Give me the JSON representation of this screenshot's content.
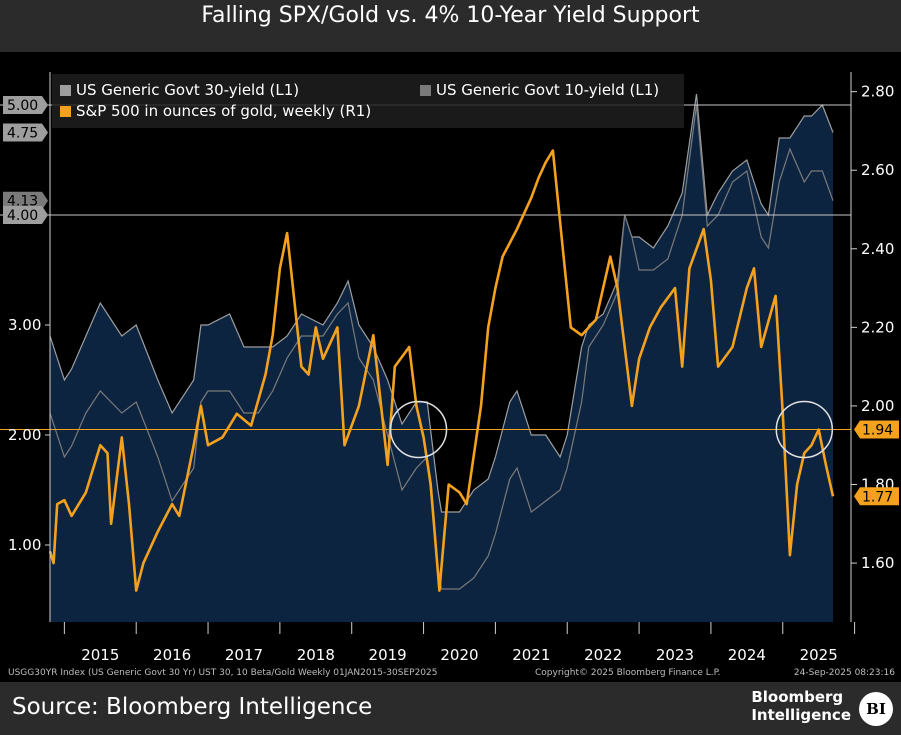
{
  "page": {
    "title": "Falling SPX/Gold vs. 4% 10-Year Yield Support",
    "source": "Source: Bloomberg Intelligence",
    "logo_line1": "Bloomberg",
    "logo_line2": "Intelligence",
    "logo_badge": "BI",
    "footer_left": "USGG30YR Index (US Generic Govt 30 Yr) UST 30, 10 Beta/Gold  Weekly 01JAN2015-30SEP2025",
    "footer_mid": "Copyright© 2025 Bloomberg Finance L.P.",
    "footer_right": "24-Sep-2025 08:23:16"
  },
  "colors": {
    "y30_fill": "#0d2440",
    "y30_line": "#9e9e9e",
    "y10_line": "#7a7a7a",
    "spx_gold": "#f4a11d",
    "background": "#000000"
  },
  "chart_data": {
    "type": "line",
    "title": "Falling SPX/Gold vs. 4% 10-Year Yield Support",
    "x_range": [
      2014.8,
      2025.95
    ],
    "x_ticks": [
      "2015",
      "2016",
      "2017",
      "2018",
      "2019",
      "2020",
      "2021",
      "2022",
      "2023",
      "2024",
      "2025"
    ],
    "left_axis": {
      "range": [
        0.3,
        5.3
      ],
      "ticks": [
        "1.00",
        "2.00",
        "3.00"
      ]
    },
    "right_axis": {
      "range": [
        1.45,
        2.85
      ],
      "ticks": [
        "1.60",
        "1.80",
        "2.00",
        "2.20",
        "2.40",
        "2.60",
        "2.80"
      ]
    },
    "legend": [
      "US Generic Govt 30-yield (L1)",
      "US Generic Govt 10-yield (L1)",
      "S&P 500 in ounces of gold, weekly (R1)"
    ],
    "hlines": [
      {
        "axis": "left",
        "value": 5.0,
        "label": "5.00",
        "label_color": "#ffffff",
        "label_bg": "#9e9e9e"
      },
      {
        "axis": "left",
        "value": 4.0,
        "label": "4.00",
        "label_color": "#ffffff",
        "label_bg": "#9e9e9e"
      },
      {
        "axis": "right",
        "value": 1.94,
        "label": "1.94",
        "label_color": "#000000",
        "label_bg": "#f4a11d"
      }
    ],
    "last_value_tags": [
      {
        "axis": "left",
        "value": 4.75,
        "label": "4.75",
        "label_bg": "#9e9e9e"
      },
      {
        "axis": "left",
        "value": 4.13,
        "label": "4.13",
        "label_bg": "#7a7a7a"
      },
      {
        "axis": "right",
        "value": 1.77,
        "label": "1.77",
        "label_bg": "#f4a11d"
      }
    ],
    "circles": [
      {
        "x": 2019.93,
        "axis": "right",
        "value": 1.94
      },
      {
        "x": 2025.3,
        "axis": "right",
        "value": 1.94
      }
    ],
    "series": [
      {
        "name": "US Generic Govt 30-yield",
        "axis": "left",
        "x": [
          2014.8,
          2015.0,
          2015.1,
          2015.3,
          2015.5,
          2015.8,
          2016.0,
          2016.3,
          2016.5,
          2016.8,
          2016.9,
          2017.0,
          2017.3,
          2017.5,
          2017.7,
          2017.9,
          2018.1,
          2018.3,
          2018.6,
          2018.8,
          2018.95,
          2019.1,
          2019.3,
          2019.5,
          2019.7,
          2019.9,
          2020.05,
          2020.2,
          2020.25,
          2020.5,
          2020.7,
          2020.9,
          2021.0,
          2021.2,
          2021.3,
          2021.5,
          2021.7,
          2021.9,
          2022.0,
          2022.2,
          2022.3,
          2022.5,
          2022.7,
          2022.8,
          2022.9,
          2023.0,
          2023.2,
          2023.4,
          2023.6,
          2023.8,
          2023.95,
          2024.1,
          2024.3,
          2024.5,
          2024.7,
          2024.8,
          2024.95,
          2025.1,
          2025.3,
          2025.4,
          2025.55,
          2025.7
        ],
        "values": [
          2.9,
          2.5,
          2.6,
          2.9,
          3.2,
          2.9,
          3.0,
          2.5,
          2.2,
          2.5,
          3.0,
          3.0,
          3.1,
          2.8,
          2.8,
          2.8,
          2.9,
          3.1,
          3.0,
          3.2,
          3.4,
          3.0,
          2.8,
          2.5,
          2.1,
          2.3,
          2.3,
          1.5,
          1.3,
          1.3,
          1.5,
          1.6,
          1.8,
          2.3,
          2.4,
          2.0,
          2.0,
          1.8,
          2.0,
          2.8,
          3.0,
          3.1,
          3.4,
          4.0,
          3.8,
          3.8,
          3.7,
          3.9,
          4.2,
          5.1,
          4.0,
          4.2,
          4.4,
          4.5,
          4.1,
          4.0,
          4.7,
          4.7,
          4.9,
          4.9,
          5.0,
          4.75
        ]
      },
      {
        "name": "US Generic Govt 10-yield",
        "axis": "left",
        "x": [
          2014.8,
          2015.0,
          2015.1,
          2015.3,
          2015.5,
          2015.8,
          2016.0,
          2016.3,
          2016.5,
          2016.8,
          2016.9,
          2017.0,
          2017.3,
          2017.5,
          2017.7,
          2017.9,
          2018.1,
          2018.3,
          2018.6,
          2018.8,
          2018.95,
          2019.1,
          2019.3,
          2019.5,
          2019.7,
          2019.9,
          2020.05,
          2020.2,
          2020.25,
          2020.5,
          2020.7,
          2020.9,
          2021.0,
          2021.2,
          2021.3,
          2021.5,
          2021.7,
          2021.9,
          2022.0,
          2022.2,
          2022.3,
          2022.5,
          2022.7,
          2022.8,
          2022.9,
          2023.0,
          2023.2,
          2023.4,
          2023.6,
          2023.8,
          2023.95,
          2024.1,
          2024.3,
          2024.5,
          2024.7,
          2024.8,
          2024.95,
          2025.1,
          2025.3,
          2025.4,
          2025.55,
          2025.7
        ],
        "values": [
          2.2,
          1.8,
          1.9,
          2.2,
          2.4,
          2.2,
          2.3,
          1.8,
          1.4,
          1.7,
          2.3,
          2.4,
          2.4,
          2.2,
          2.2,
          2.4,
          2.7,
          2.9,
          2.9,
          3.1,
          3.2,
          2.7,
          2.5,
          2.0,
          1.5,
          1.7,
          1.8,
          0.8,
          0.6,
          0.6,
          0.7,
          0.9,
          1.1,
          1.6,
          1.7,
          1.3,
          1.4,
          1.5,
          1.7,
          2.3,
          2.8,
          3.0,
          3.3,
          4.0,
          3.8,
          3.5,
          3.5,
          3.6,
          4.0,
          5.0,
          3.9,
          4.0,
          4.3,
          4.4,
          3.8,
          3.7,
          4.3,
          4.6,
          4.3,
          4.4,
          4.4,
          4.13
        ]
      },
      {
        "name": "S&P 500 in ounces of gold, weekly",
        "axis": "right",
        "x": [
          2014.8,
          2014.85,
          2014.9,
          2015.0,
          2015.1,
          2015.3,
          2015.5,
          2015.6,
          2015.65,
          2015.8,
          2015.9,
          2016.0,
          2016.1,
          2016.3,
          2016.5,
          2016.6,
          2016.8,
          2016.9,
          2017.0,
          2017.2,
          2017.4,
          2017.6,
          2017.8,
          2017.9,
          2018.0,
          2018.1,
          2018.3,
          2018.4,
          2018.5,
          2018.6,
          2018.8,
          2018.9,
          2019.0,
          2019.1,
          2019.3,
          2019.5,
          2019.6,
          2019.8,
          2019.9,
          2020.0,
          2020.1,
          2020.18,
          2020.22,
          2020.35,
          2020.5,
          2020.6,
          2020.8,
          2020.9,
          2021.0,
          2021.1,
          2021.3,
          2021.5,
          2021.6,
          2021.7,
          2021.8,
          2021.95,
          2022.05,
          2022.2,
          2022.4,
          2022.6,
          2022.7,
          2022.9,
          2023.0,
          2023.15,
          2023.3,
          2023.5,
          2023.6,
          2023.7,
          2023.9,
          2024.0,
          2024.1,
          2024.3,
          2024.5,
          2024.6,
          2024.7,
          2024.9,
          2025.0,
          2025.1,
          2025.2,
          2025.3,
          2025.4,
          2025.5,
          2025.6,
          2025.7
        ],
        "values": [
          1.63,
          1.6,
          1.75,
          1.76,
          1.72,
          1.78,
          1.9,
          1.88,
          1.7,
          1.92,
          1.75,
          1.53,
          1.6,
          1.68,
          1.75,
          1.72,
          1.9,
          2.0,
          1.9,
          1.92,
          1.98,
          1.95,
          2.08,
          2.18,
          2.35,
          2.44,
          2.1,
          2.08,
          2.2,
          2.12,
          2.2,
          1.9,
          1.95,
          2.0,
          2.18,
          1.85,
          2.1,
          2.15,
          2.0,
          1.92,
          1.8,
          1.62,
          1.53,
          1.8,
          1.78,
          1.75,
          2.0,
          2.2,
          2.3,
          2.38,
          2.45,
          2.53,
          2.58,
          2.62,
          2.65,
          2.38,
          2.2,
          2.18,
          2.22,
          2.38,
          2.3,
          2.0,
          2.12,
          2.2,
          2.25,
          2.3,
          2.1,
          2.35,
          2.45,
          2.32,
          2.1,
          2.15,
          2.3,
          2.35,
          2.15,
          2.28,
          1.98,
          1.62,
          1.8,
          1.88,
          1.9,
          1.94,
          1.85,
          1.77
        ]
      }
    ]
  }
}
